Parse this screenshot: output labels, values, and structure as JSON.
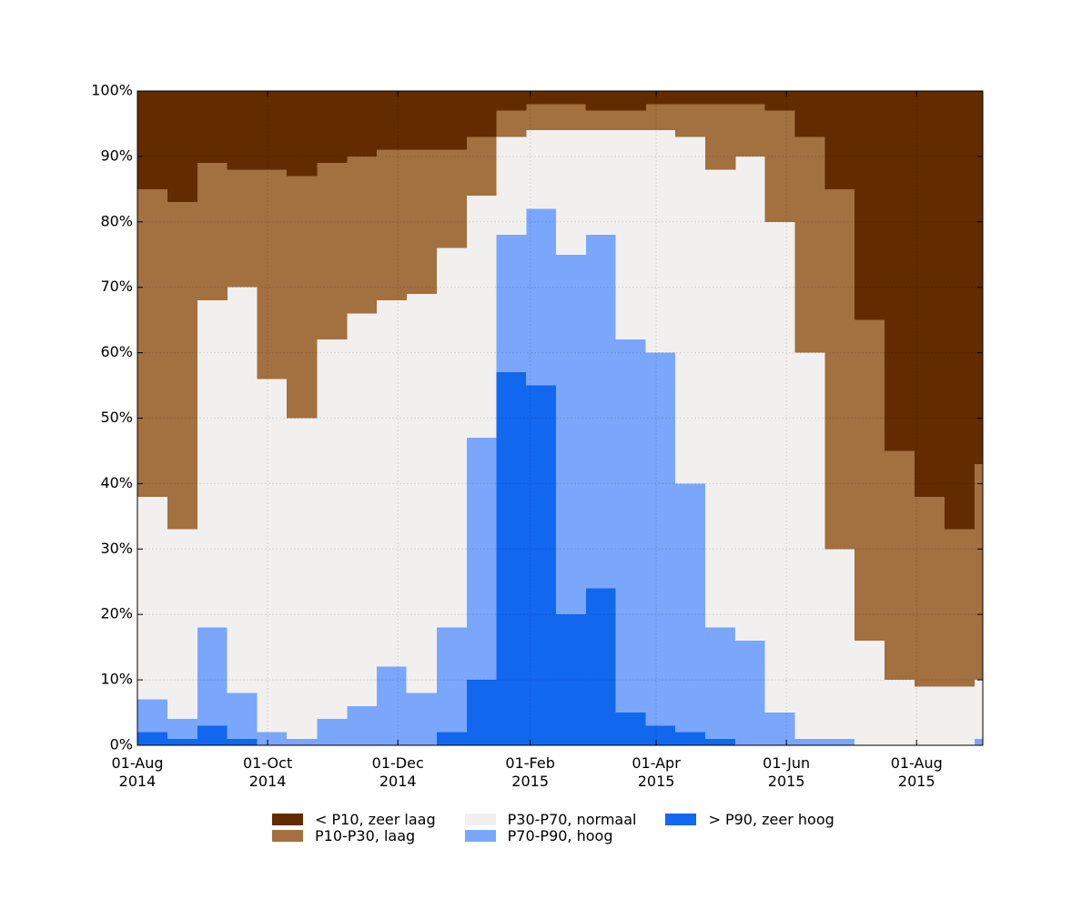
{
  "chart_data": {
    "type": "stacked-area",
    "x": [
      "2014-08-01",
      "2014-08-15",
      "2014-08-29",
      "2014-09-12",
      "2014-09-26",
      "2014-10-10",
      "2014-10-24",
      "2014-11-07",
      "2014-11-21",
      "2014-12-05",
      "2014-12-19",
      "2015-01-02",
      "2015-01-16",
      "2015-01-30",
      "2015-02-13",
      "2015-02-27",
      "2015-03-13",
      "2015-03-27",
      "2015-04-10",
      "2015-04-24",
      "2015-05-08",
      "2015-05-22",
      "2015-06-05",
      "2015-06-19",
      "2015-07-03",
      "2015-07-17",
      "2015-07-31",
      "2015-08-14",
      "2015-08-28"
    ],
    "series": [
      {
        "name": "< P10, zeer laag",
        "color": "#622b00",
        "values": [
          15,
          17,
          11,
          12,
          12,
          13,
          11,
          10,
          9,
          9,
          9,
          7,
          3,
          2,
          2,
          3,
          3,
          2,
          2,
          2,
          2,
          3,
          7,
          15,
          35,
          55,
          62,
          67,
          57
        ]
      },
      {
        "name": "P10-P30, laag",
        "color": "#a3703f",
        "values": [
          47,
          50,
          21,
          18,
          32,
          37,
          27,
          24,
          23,
          22,
          15,
          9,
          4,
          4,
          4,
          3,
          3,
          4,
          5,
          10,
          8,
          17,
          33,
          55,
          49,
          35,
          29,
          24,
          33
        ]
      },
      {
        "name": "P30-P70, normaal",
        "color": "#f2f0ef",
        "values": [
          31,
          29,
          50,
          62,
          54,
          49,
          58,
          60,
          56,
          61,
          58,
          37,
          15,
          12,
          19,
          16,
          32,
          34,
          53,
          70,
          74,
          75,
          59,
          29,
          16,
          10,
          9,
          9,
          9
        ]
      },
      {
        "name": "P70-P90, hoog",
        "color": "#7aa7fc",
        "values": [
          5,
          3,
          15,
          7,
          2,
          1,
          4,
          6,
          12,
          8,
          16,
          37,
          21,
          27,
          55,
          54,
          57,
          57,
          38,
          17,
          16,
          5,
          1,
          1,
          0,
          0,
          0,
          0,
          1
        ]
      },
      {
        "name": "> P90, zeer hoog",
        "color": "#1267ef",
        "values": [
          2,
          1,
          3,
          1,
          0,
          0,
          0,
          0,
          0,
          0,
          2,
          10,
          57,
          55,
          20,
          24,
          5,
          3,
          2,
          1,
          0,
          0,
          0,
          0,
          0,
          0,
          0,
          0,
          0
        ]
      }
    ],
    "xlim": [
      "2014-08-01",
      "2015-09-01"
    ],
    "xticks": [
      {
        "value": "2014-08-01",
        "label": "01-Aug\n2014"
      },
      {
        "value": "2014-10-01",
        "label": "01-Oct\n2014"
      },
      {
        "value": "2014-12-01",
        "label": "01-Dec\n2014"
      },
      {
        "value": "2015-02-01",
        "label": "01-Feb\n2015"
      },
      {
        "value": "2015-04-01",
        "label": "01-Apr\n2015"
      },
      {
        "value": "2015-06-01",
        "label": "01-Jun\n2015"
      },
      {
        "value": "2015-08-01",
        "label": "01-Aug\n2015"
      }
    ],
    "ylim": [
      0,
      100
    ],
    "yticks": [
      {
        "value": 0,
        "label": "0%"
      },
      {
        "value": 10,
        "label": "10%"
      },
      {
        "value": 20,
        "label": "20%"
      },
      {
        "value": 30,
        "label": "30%"
      },
      {
        "value": 40,
        "label": "40%"
      },
      {
        "value": 50,
        "label": "50%"
      },
      {
        "value": 60,
        "label": "60%"
      },
      {
        "value": 70,
        "label": "70%"
      },
      {
        "value": 80,
        "label": "80%"
      },
      {
        "value": 90,
        "label": "90%"
      },
      {
        "value": 100,
        "label": "100%"
      }
    ],
    "grid": true,
    "legend": "bottom"
  }
}
